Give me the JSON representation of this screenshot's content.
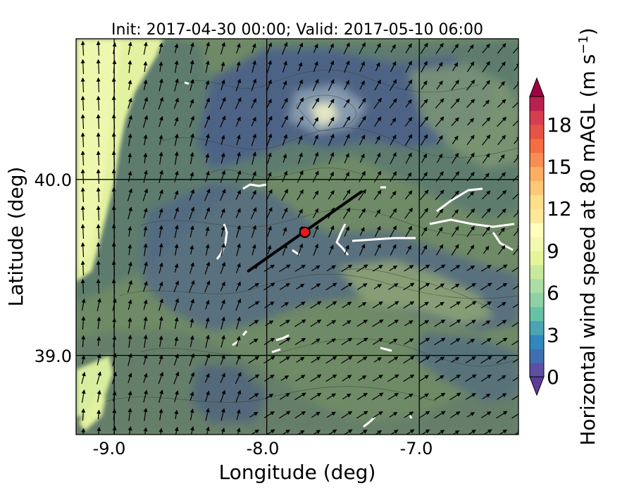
{
  "figure": {
    "title": "Init: 2017-04-30 00:00; Valid: 2017-05-10 06:00",
    "xlabel": "Longitude (deg)",
    "ylabel": "Latitude (deg)",
    "x_ticks": [
      "-9.0",
      "-8.0",
      "-7.0"
    ],
    "y_ticks": [
      "40.0",
      "39.0"
    ]
  },
  "colorbar": {
    "label": "Horizontal wind speed at 80 mAGL (m s",
    "label_superscript": "−1",
    "label_close": ")",
    "ticks": [
      "0",
      "3",
      "6",
      "9",
      "12",
      "15",
      "18"
    ],
    "range": [
      0,
      20
    ],
    "levels": 20,
    "colors": [
      "#5e4fa2",
      "#3f6fb0",
      "#3288bd",
      "#4ba3b3",
      "#66c2a5",
      "#8fd1a4",
      "#abdda4",
      "#c8e89e",
      "#e6f598",
      "#f3fab0",
      "#ffffbf",
      "#fee89a",
      "#fee08b",
      "#fdc878",
      "#fdae61",
      "#f88d52",
      "#f46d43",
      "#e65346",
      "#d53e4f",
      "#b8204f",
      "#9e0142"
    ]
  },
  "chart_data": {
    "type": "map",
    "extent": {
      "lon": [
        -9.25,
        -6.35
      ],
      "lat": [
        38.55,
        40.8
      ]
    },
    "gridlines": {
      "lon": [
        -9.0,
        -8.0,
        -7.0
      ],
      "lat": [
        40.0,
        39.0
      ]
    },
    "site": {
      "lon": -7.75,
      "lat": 39.7
    },
    "transect": {
      "start": {
        "lon": -8.12,
        "lat": 39.48
      },
      "end": {
        "lon": -7.38,
        "lat": 39.93
      }
    },
    "coast_region": {
      "lon_max": -8.7,
      "wind_speed": 10
    },
    "inland_wind_speed_range": [
      0,
      8
    ],
    "wind_vectors": "north-easterly flow inland, northerly flow offshore",
    "legend": "none"
  }
}
